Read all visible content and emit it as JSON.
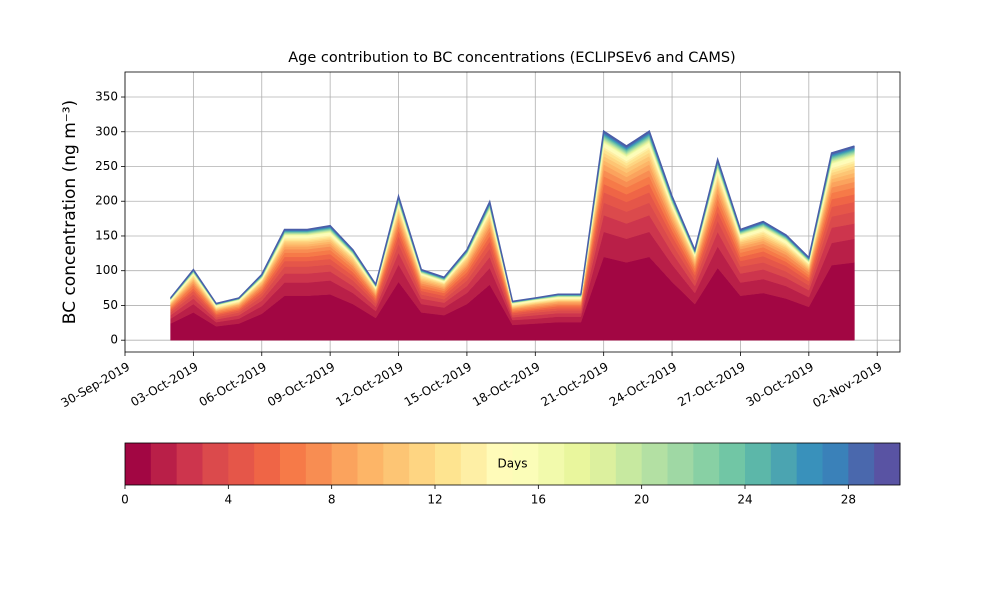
{
  "chart_data": {
    "type": "stacked_area",
    "title": "Age contribution to BC concentrations (ECLIPSEv6 and CAMS)",
    "y_label": "BC concentration (ng m⁻³)",
    "x": [
      "02-Oct-2019",
      "03-Oct-2019",
      "04-Oct-2019",
      "05-Oct-2019",
      "06-Oct-2019",
      "07-Oct-2019",
      "08-Oct-2019",
      "09-Oct-2019",
      "10-Oct-2019",
      "11-Oct-2019",
      "12-Oct-2019",
      "13-Oct-2019",
      "14-Oct-2019",
      "15-Oct-2019",
      "16-Oct-2019",
      "17-Oct-2019",
      "18-Oct-2019",
      "19-Oct-2019",
      "20-Oct-2019",
      "21-Oct-2019",
      "22-Oct-2019",
      "23-Oct-2019",
      "24-Oct-2019",
      "25-Oct-2019",
      "26-Oct-2019",
      "27-Oct-2019",
      "28-Oct-2019",
      "29-Oct-2019",
      "30-Oct-2019",
      "31-Oct-2019",
      "01-Nov-2019"
    ],
    "xlim": [
      "30-Sep-2019",
      "03-Nov-2019"
    ],
    "xticks": [
      "30-Sep-2019",
      "03-Oct-2019",
      "06-Oct-2019",
      "09-Oct-2019",
      "12-Oct-2019",
      "15-Oct-2019",
      "18-Oct-2019",
      "21-Oct-2019",
      "24-Oct-2019",
      "27-Oct-2019",
      "30-Oct-2019",
      "02-Nov-2019"
    ],
    "ylim": [
      -17,
      386
    ],
    "yticks": [
      0,
      50,
      100,
      150,
      200,
      250,
      300,
      350
    ],
    "grid": true,
    "outline_color": "#4a5ea8",
    "series": [
      {
        "color": "#a20643",
        "values": [
          24,
          40,
          20,
          24,
          38,
          64,
          64,
          66,
          52,
          32,
          84,
          40,
          36,
          52,
          80,
          22,
          24,
          26,
          26,
          120,
          112,
          120,
          84,
          52,
          104,
          64,
          68,
          60,
          48,
          108,
          112
        ]
      },
      {
        "color": "#b91f48",
        "values": [
          7,
          12,
          6,
          7,
          11,
          19,
          19,
          20,
          16,
          10,
          25,
          12,
          11,
          16,
          24,
          7,
          7,
          8,
          8,
          36,
          34,
          36,
          25,
          16,
          31,
          19,
          20,
          18,
          14,
          32,
          34
        ]
      },
      {
        "color": "#cd354d",
        "values": [
          5,
          8,
          4,
          5,
          8,
          13,
          13,
          13,
          10,
          6,
          17,
          8,
          7,
          10,
          16,
          4,
          5,
          5,
          5,
          24,
          22,
          24,
          17,
          10,
          21,
          13,
          14,
          12,
          10,
          22,
          22
        ]
      },
      {
        "color": "#db4a4c",
        "values": [
          4,
          6,
          3,
          4,
          6,
          10,
          10,
          10,
          8,
          5,
          13,
          6,
          5,
          8,
          12,
          3,
          4,
          4,
          4,
          18,
          17,
          18,
          13,
          8,
          16,
          10,
          10,
          9,
          7,
          16,
          17
        ]
      },
      {
        "color": "#e55649",
        "values": [
          3,
          5,
          3,
          3,
          5,
          8,
          8,
          8,
          7,
          4,
          11,
          5,
          5,
          7,
          10,
          3,
          3,
          3,
          3,
          15,
          14,
          15,
          11,
          7,
          13,
          8,
          9,
          8,
          6,
          14,
          14
        ]
      },
      {
        "color": "#ef6546",
        "values": [
          2,
          4,
          2,
          2,
          4,
          6,
          6,
          7,
          5,
          3,
          8,
          4,
          4,
          5,
          8,
          2,
          2,
          3,
          3,
          12,
          11,
          12,
          8,
          5,
          10,
          6,
          7,
          6,
          5,
          11,
          11
        ]
      },
      {
        "color": "#f67a48",
        "values": [
          2,
          4,
          2,
          2,
          3,
          6,
          6,
          6,
          5,
          3,
          7,
          4,
          3,
          5,
          7,
          2,
          2,
          2,
          2,
          11,
          10,
          11,
          7,
          5,
          9,
          6,
          6,
          5,
          4,
          9,
          10
        ]
      },
      {
        "color": "#f88d52",
        "values": [
          2,
          3,
          2,
          2,
          3,
          5,
          5,
          5,
          4,
          2,
          6,
          3,
          3,
          4,
          6,
          2,
          2,
          2,
          2,
          9,
          8,
          9,
          6,
          4,
          8,
          5,
          5,
          5,
          4,
          8,
          8
        ]
      },
      {
        "color": "#fba35d",
        "values": [
          2,
          3,
          1,
          2,
          2,
          4,
          4,
          4,
          3,
          2,
          5,
          3,
          2,
          3,
          5,
          1,
          2,
          2,
          2,
          8,
          7,
          8,
          5,
          3,
          7,
          4,
          4,
          4,
          3,
          7,
          7
        ]
      },
      {
        "color": "#fdb567",
        "values": [
          1,
          2,
          1,
          1,
          2,
          3,
          3,
          3,
          3,
          2,
          4,
          2,
          2,
          3,
          4,
          1,
          1,
          1,
          1,
          6,
          6,
          6,
          4,
          3,
          5,
          3,
          3,
          3,
          2,
          5,
          6
        ]
      },
      {
        "color": "#fdc574",
        "values": [
          1,
          2,
          1,
          1,
          2,
          3,
          3,
          3,
          3,
          2,
          4,
          2,
          2,
          3,
          4,
          1,
          1,
          1,
          1,
          6,
          6,
          6,
          4,
          3,
          5,
          3,
          3,
          3,
          2,
          5,
          6
        ]
      },
      {
        "color": "#fed582",
        "values": [
          1,
          2,
          1,
          1,
          1,
          2,
          2,
          2,
          2,
          1,
          3,
          2,
          1,
          2,
          3,
          1,
          1,
          1,
          1,
          5,
          4,
          5,
          3,
          2,
          4,
          2,
          3,
          2,
          2,
          4,
          4
        ]
      },
      {
        "color": "#fee490",
        "values": [
          1,
          2,
          1,
          1,
          1,
          2,
          2,
          2,
          2,
          1,
          3,
          2,
          1,
          2,
          3,
          1,
          1,
          1,
          1,
          5,
          4,
          5,
          3,
          2,
          4,
          2,
          3,
          2,
          2,
          4,
          4
        ]
      },
      {
        "color": "#feefa5",
        "values": [
          1,
          1,
          1,
          1,
          1,
          2,
          2,
          2,
          1,
          1,
          2,
          1,
          1,
          1,
          2,
          1,
          1,
          1,
          1,
          3,
          3,
          3,
          2,
          1,
          3,
          2,
          2,
          2,
          1,
          3,
          3
        ]
      },
      {
        "color": "#fffbb9",
        "values": [
          1,
          1,
          1,
          1,
          1,
          2,
          2,
          2,
          1,
          1,
          2,
          1,
          1,
          1,
          2,
          1,
          1,
          1,
          1,
          3,
          3,
          3,
          2,
          1,
          3,
          2,
          2,
          2,
          1,
          3,
          3
        ]
      },
      {
        "color": "#fbfdb8",
        "values": [
          1,
          1,
          1,
          1,
          1,
          2,
          2,
          2,
          1,
          1,
          2,
          1,
          1,
          1,
          2,
          1,
          1,
          1,
          1,
          3,
          3,
          3,
          2,
          1,
          3,
          2,
          2,
          2,
          1,
          3,
          3
        ]
      },
      {
        "color": "#f2faac",
        "values": [
          0.2,
          0.4,
          0.2,
          0.2,
          0.4,
          0.6,
          0.6,
          0.7,
          0.5,
          0.3,
          0.8,
          0.4,
          0.4,
          0.5,
          0.8,
          0.2,
          0.2,
          0.3,
          0.3,
          1.2,
          1.1,
          1.2,
          0.8,
          0.5,
          1,
          0.6,
          0.7,
          0.6,
          0.5,
          1.1,
          1.1
        ]
      },
      {
        "color": "#e9f69d",
        "values": [
          0.2,
          0.4,
          0.2,
          0.2,
          0.4,
          0.6,
          0.6,
          0.7,
          0.5,
          0.3,
          0.8,
          0.4,
          0.4,
          0.5,
          0.8,
          0.2,
          0.2,
          0.3,
          0.3,
          1.2,
          1.1,
          1.2,
          0.8,
          0.5,
          1,
          0.6,
          0.7,
          0.6,
          0.5,
          1.1,
          1.1
        ]
      },
      {
        "color": "#dcf09e",
        "values": [
          0.2,
          0.4,
          0.2,
          0.2,
          0.4,
          0.6,
          0.6,
          0.7,
          0.5,
          0.3,
          0.8,
          0.4,
          0.4,
          0.5,
          0.8,
          0.2,
          0.2,
          0.3,
          0.3,
          1.2,
          1.1,
          1.2,
          0.8,
          0.5,
          1,
          0.6,
          0.7,
          0.6,
          0.5,
          1.1,
          1.1
        ]
      },
      {
        "color": "#c7e9a0",
        "values": [
          0.2,
          0.4,
          0.2,
          0.2,
          0.4,
          0.6,
          0.6,
          0.7,
          0.5,
          0.3,
          0.8,
          0.4,
          0.4,
          0.5,
          0.8,
          0.2,
          0.2,
          0.3,
          0.3,
          1.2,
          1.1,
          1.2,
          0.8,
          0.5,
          1,
          0.6,
          0.7,
          0.6,
          0.5,
          1.1,
          1.1
        ]
      },
      {
        "color": "#b3e0a3",
        "values": [
          0.2,
          0.4,
          0.2,
          0.2,
          0.4,
          0.6,
          0.6,
          0.7,
          0.5,
          0.3,
          0.8,
          0.4,
          0.4,
          0.5,
          0.8,
          0.2,
          0.2,
          0.3,
          0.3,
          1.2,
          1.1,
          1.2,
          0.8,
          0.5,
          1,
          0.6,
          0.7,
          0.6,
          0.5,
          1.1,
          1.1
        ]
      },
      {
        "color": "#9fd8a4",
        "values": [
          0.2,
          0.4,
          0.2,
          0.2,
          0.4,
          0.6,
          0.6,
          0.7,
          0.5,
          0.3,
          0.8,
          0.4,
          0.4,
          0.5,
          0.8,
          0.2,
          0.2,
          0.3,
          0.3,
          1.2,
          1.1,
          1.2,
          0.8,
          0.5,
          1,
          0.6,
          0.7,
          0.6,
          0.5,
          1.1,
          1.1
        ]
      },
      {
        "color": "#88d0a4",
        "values": [
          0.2,
          0.4,
          0.2,
          0.2,
          0.4,
          0.6,
          0.6,
          0.7,
          0.5,
          0.3,
          0.8,
          0.4,
          0.4,
          0.5,
          0.8,
          0.2,
          0.2,
          0.3,
          0.3,
          1.2,
          1.1,
          1.2,
          0.8,
          0.5,
          1,
          0.6,
          0.7,
          0.6,
          0.5,
          1.1,
          1.1
        ]
      },
      {
        "color": "#71c6a5",
        "values": [
          0.2,
          0.4,
          0.2,
          0.2,
          0.4,
          0.6,
          0.6,
          0.7,
          0.5,
          0.3,
          0.8,
          0.4,
          0.4,
          0.5,
          0.8,
          0.2,
          0.2,
          0.3,
          0.3,
          1.2,
          1.1,
          1.2,
          0.8,
          0.5,
          1,
          0.6,
          0.7,
          0.6,
          0.5,
          1.1,
          1.1
        ]
      },
      {
        "color": "#5cb7a9",
        "values": [
          0.2,
          0.4,
          0.2,
          0.2,
          0.4,
          0.6,
          0.6,
          0.7,
          0.5,
          0.3,
          0.8,
          0.4,
          0.4,
          0.5,
          0.8,
          0.2,
          0.2,
          0.3,
          0.3,
          1.2,
          1.1,
          1.2,
          0.8,
          0.5,
          1,
          0.6,
          0.7,
          0.6,
          0.5,
          1.1,
          1.1
        ]
      },
      {
        "color": "#4ba4b1",
        "values": [
          0.2,
          0.4,
          0.2,
          0.2,
          0.4,
          0.6,
          0.6,
          0.7,
          0.5,
          0.3,
          0.8,
          0.4,
          0.4,
          0.5,
          0.8,
          0.2,
          0.2,
          0.3,
          0.3,
          1.2,
          1.1,
          1.2,
          0.8,
          0.5,
          1,
          0.6,
          0.7,
          0.6,
          0.5,
          1.1,
          1.1
        ]
      },
      {
        "color": "#3991bb",
        "values": [
          0.2,
          0.4,
          0.2,
          0.2,
          0.4,
          0.6,
          0.6,
          0.7,
          0.5,
          0.3,
          0.8,
          0.4,
          0.4,
          0.5,
          0.8,
          0.2,
          0.2,
          0.3,
          0.3,
          1.2,
          1.1,
          1.2,
          0.8,
          0.5,
          1,
          0.6,
          0.7,
          0.6,
          0.5,
          1.1,
          1.1
        ]
      },
      {
        "color": "#3a81b9",
        "values": [
          0.2,
          0.4,
          0.2,
          0.2,
          0.4,
          0.6,
          0.6,
          0.7,
          0.5,
          0.3,
          0.8,
          0.4,
          0.4,
          0.5,
          0.8,
          0.2,
          0.2,
          0.3,
          0.3,
          1.2,
          1.1,
          1.2,
          0.8,
          0.5,
          1,
          0.6,
          0.7,
          0.6,
          0.5,
          1.1,
          1.1
        ]
      },
      {
        "color": "#4a68ad",
        "values": [
          0.2,
          0.4,
          0.2,
          0.2,
          0.4,
          0.6,
          0.6,
          0.7,
          0.5,
          0.3,
          0.8,
          0.4,
          0.4,
          0.5,
          0.8,
          0.2,
          0.2,
          0.3,
          0.3,
          1.2,
          1.1,
          1.2,
          0.8,
          0.5,
          1,
          0.6,
          0.7,
          0.6,
          0.5,
          1.1,
          1.1
        ]
      },
      {
        "color": "#5953a3",
        "values": [
          0.2,
          0.4,
          0.2,
          0.2,
          0.4,
          0.6,
          0.6,
          0.7,
          0.5,
          0.3,
          0.8,
          0.4,
          0.4,
          0.5,
          0.8,
          0.2,
          0.2,
          0.3,
          0.3,
          1.2,
          1.1,
          1.2,
          0.8,
          0.5,
          1,
          0.6,
          0.7,
          0.6,
          0.5,
          1.1,
          1.1
        ]
      }
    ],
    "colorbar": {
      "label": "Days",
      "lim": [
        0,
        30
      ],
      "ticks": [
        0,
        4,
        8,
        12,
        16,
        20,
        24,
        28
      ]
    }
  }
}
